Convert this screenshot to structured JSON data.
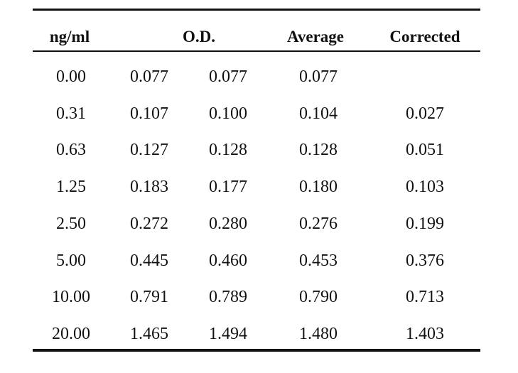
{
  "table": {
    "headers": {
      "conc": "ng/ml",
      "od": "O.D.",
      "average": "Average",
      "corrected": "Corrected"
    },
    "rows": [
      {
        "conc": "0.00",
        "od1": "0.077",
        "od2": "0.077",
        "average": "0.077",
        "corrected": ""
      },
      {
        "conc": "0.31",
        "od1": "0.107",
        "od2": "0.100",
        "average": "0.104",
        "corrected": "0.027"
      },
      {
        "conc": "0.63",
        "od1": "0.127",
        "od2": "0.128",
        "average": "0.128",
        "corrected": "0.051"
      },
      {
        "conc": "1.25",
        "od1": "0.183",
        "od2": "0.177",
        "average": "0.180",
        "corrected": "0.103"
      },
      {
        "conc": "2.50",
        "od1": "0.272",
        "od2": "0.280",
        "average": "0.276",
        "corrected": "0.199"
      },
      {
        "conc": "5.00",
        "od1": "0.445",
        "od2": "0.460",
        "average": "0.453",
        "corrected": "0.376"
      },
      {
        "conc": "10.00",
        "od1": "0.791",
        "od2": "0.789",
        "average": "0.790",
        "corrected": "0.713"
      },
      {
        "conc": "20.00",
        "od1": "1.465",
        "od2": "1.494",
        "average": "1.480",
        "corrected": "1.403"
      }
    ]
  }
}
